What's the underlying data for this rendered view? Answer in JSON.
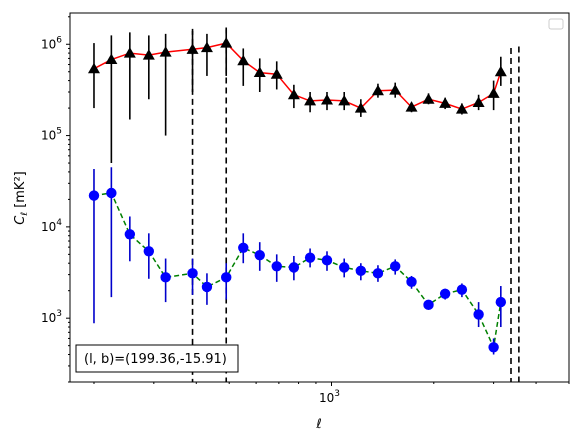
{
  "chart_data": {
    "type": "line",
    "title": "",
    "xlabel": "ℓ",
    "ylabel_main": "C",
    "ylabel_sub": "ℓ",
    "ylabel_unit": "[mK²]",
    "xscale": "log",
    "yscale": "log",
    "xlim": [
      170,
      5000
    ],
    "ylim": [
      200,
      2200000
    ],
    "x_ticks": [
      {
        "value": 1000,
        "base": "10",
        "exp": "3"
      }
    ],
    "y_ticks": [
      {
        "value": 1000,
        "base": "10",
        "exp": "3"
      },
      {
        "value": 10000,
        "base": "10",
        "exp": "4"
      },
      {
        "value": 100000,
        "base": "10",
        "exp": "5"
      },
      {
        "value": 1000000,
        "base": "10",
        "exp": "6"
      }
    ],
    "grid": false,
    "legend": "top-right (empty)",
    "annotation": "(l, b)=(199.36,-15.91)",
    "annotation_location": "bottom-left",
    "vlines": [
      390,
      490,
      3560
    ],
    "series": [
      {
        "color": "#ff0000",
        "marker": "triangle",
        "marker_color": "#000000",
        "errorbar_color": "#000000",
        "linestyle": "solid",
        "points": [
          {
            "x": 200,
            "y": 540000,
            "lo": 200000,
            "hi": 1030000
          },
          {
            "x": 225,
            "y": 680000,
            "lo": 50000,
            "hi": 1250000
          },
          {
            "x": 255,
            "y": 800000,
            "lo": 150000,
            "hi": 1350000
          },
          {
            "x": 290,
            "y": 760000,
            "lo": 250000,
            "hi": 1250000
          },
          {
            "x": 325,
            "y": 820000,
            "lo": 100000,
            "hi": 1300000
          },
          {
            "x": 390,
            "y": 880000,
            "lo": 300000,
            "hi": 1400000
          },
          {
            "x": 430,
            "y": 920000,
            "lo": 450000,
            "hi": 1300000
          },
          {
            "x": 490,
            "y": 1030000,
            "lo": 450000,
            "hi": 1450000
          },
          {
            "x": 550,
            "y": 660000,
            "lo": 350000,
            "hi": 900000
          },
          {
            "x": 615,
            "y": 490000,
            "lo": 300000,
            "hi": 700000
          },
          {
            "x": 690,
            "y": 470000,
            "lo": 320000,
            "hi": 650000
          },
          {
            "x": 775,
            "y": 280000,
            "lo": 200000,
            "hi": 360000
          },
          {
            "x": 865,
            "y": 240000,
            "lo": 180000,
            "hi": 300000
          },
          {
            "x": 970,
            "y": 245000,
            "lo": 190000,
            "hi": 300000
          },
          {
            "x": 1090,
            "y": 240000,
            "lo": 190000,
            "hi": 300000
          },
          {
            "x": 1220,
            "y": 200000,
            "lo": 160000,
            "hi": 250000
          },
          {
            "x": 1370,
            "y": 310000,
            "lo": 260000,
            "hi": 370000
          },
          {
            "x": 1540,
            "y": 315000,
            "lo": 260000,
            "hi": 380000
          },
          {
            "x": 1720,
            "y": 205000,
            "lo": 180000,
            "hi": 230000
          },
          {
            "x": 1930,
            "y": 250000,
            "lo": 220000,
            "hi": 290000
          },
          {
            "x": 2160,
            "y": 225000,
            "lo": 195000,
            "hi": 260000
          },
          {
            "x": 2420,
            "y": 195000,
            "lo": 170000,
            "hi": 225000
          },
          {
            "x": 2710,
            "y": 230000,
            "lo": 190000,
            "hi": 280000
          },
          {
            "x": 3000,
            "y": 290000,
            "lo": 190000,
            "hi": 400000
          },
          {
            "x": 3150,
            "y": 500000,
            "lo": 350000,
            "hi": 730000
          }
        ]
      },
      {
        "color": "#008000",
        "marker": "circle",
        "marker_color": "#0000ff",
        "errorbar_color": "#0000cc",
        "linestyle": "dashed",
        "points": [
          {
            "x": 200,
            "y": 22000,
            "lo": 880,
            "hi": 43000
          },
          {
            "x": 225,
            "y": 23500,
            "lo": 1700,
            "hi": 45000
          },
          {
            "x": 255,
            "y": 8300,
            "lo": 4200,
            "hi": 13000
          },
          {
            "x": 290,
            "y": 5400,
            "lo": 2700,
            "hi": 8500
          },
          {
            "x": 325,
            "y": 2800,
            "lo": 1500,
            "hi": 4500
          },
          {
            "x": 390,
            "y": 3100,
            "lo": 1800,
            "hi": 4500
          },
          {
            "x": 430,
            "y": 2200,
            "lo": 1400,
            "hi": 3100
          },
          {
            "x": 490,
            "y": 2800,
            "lo": 1600,
            "hi": 4000
          },
          {
            "x": 550,
            "y": 5900,
            "lo": 4000,
            "hi": 8500
          },
          {
            "x": 615,
            "y": 4900,
            "lo": 3300,
            "hi": 6800
          },
          {
            "x": 690,
            "y": 3700,
            "lo": 2500,
            "hi": 5000
          },
          {
            "x": 775,
            "y": 3600,
            "lo": 2600,
            "hi": 4800
          },
          {
            "x": 865,
            "y": 4600,
            "lo": 3600,
            "hi": 5800
          },
          {
            "x": 970,
            "y": 4300,
            "lo": 3300,
            "hi": 5400
          },
          {
            "x": 1090,
            "y": 3600,
            "lo": 2800,
            "hi": 4500
          },
          {
            "x": 1220,
            "y": 3300,
            "lo": 2600,
            "hi": 4000
          },
          {
            "x": 1370,
            "y": 3100,
            "lo": 2500,
            "hi": 3800
          },
          {
            "x": 1540,
            "y": 3700,
            "lo": 3000,
            "hi": 4400
          },
          {
            "x": 1720,
            "y": 2500,
            "lo": 2100,
            "hi": 2900
          },
          {
            "x": 1930,
            "y": 1400,
            "lo": 1250,
            "hi": 1550
          },
          {
            "x": 2160,
            "y": 1850,
            "lo": 1600,
            "hi": 2100
          },
          {
            "x": 2420,
            "y": 2050,
            "lo": 1700,
            "hi": 2400
          },
          {
            "x": 2710,
            "y": 1100,
            "lo": 800,
            "hi": 1500
          },
          {
            "x": 3000,
            "y": 480,
            "lo": 400,
            "hi": 600
          },
          {
            "x": 3150,
            "y": 1500,
            "lo": 800,
            "hi": 2250
          }
        ]
      }
    ]
  }
}
